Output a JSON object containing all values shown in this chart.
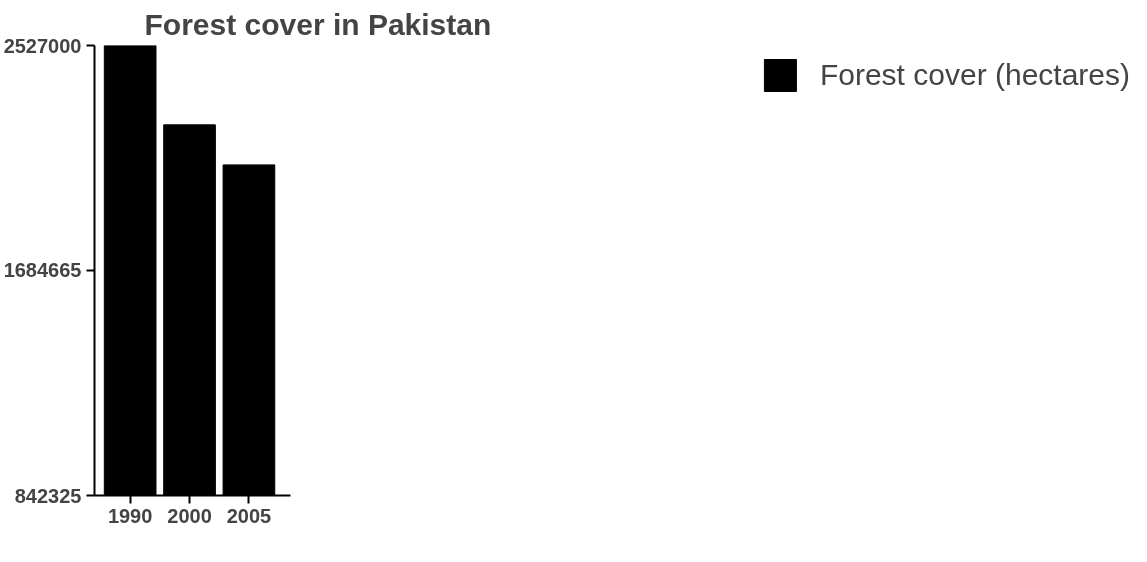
{
  "chart_data": {
    "type": "bar",
    "title": "Forest cover in Pakistan",
    "categories": [
      "1990",
      "2000",
      "2005"
    ],
    "series": [
      {
        "name": "Forest cover (hectares)",
        "color": "#000000",
        "values": [
          2527000,
          2230000,
          2080000
        ]
      }
    ],
    "ylim": [
      842325,
      2527000
    ],
    "yticks": [
      842325,
      1684665,
      2527000
    ],
    "grid": false,
    "legend": "right"
  }
}
